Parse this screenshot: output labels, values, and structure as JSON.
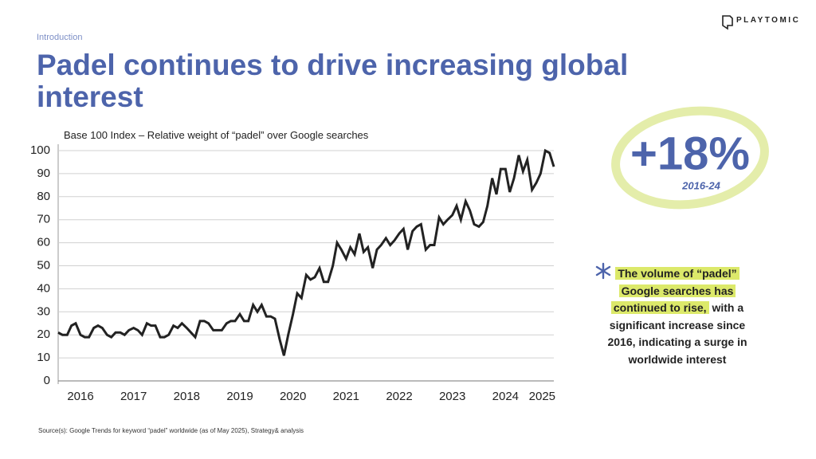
{
  "section": "Introduction",
  "title": "Padel continues to drive increasing global interest",
  "brand": "PLAYTOMIC",
  "kpi": {
    "value": "+18%",
    "period": "2016-24"
  },
  "callout": {
    "lines": [
      {
        "highlight": "The volume of “padel”"
      },
      {
        "highlight": "Google searches has"
      },
      {
        "highlight": "continued to rise,",
        "rest": "with a"
      },
      {
        "rest": "significant increase since"
      },
      {
        "rest": "2016, indicating a surge in"
      },
      {
        "rest": "worldwide interest"
      }
    ]
  },
  "source": "Source(s): Google Trends for keyword “padel” worldwide (as of May 2025), Strategy& analysis",
  "chart_data": {
    "type": "line",
    "title": "Base 100 Index – Relative weight of “padel” over Google searches",
    "color": "#222222",
    "grid": true,
    "x": [
      2016,
      2016.08,
      2016.17,
      2016.25,
      2016.33,
      2016.42,
      2016.5,
      2016.58,
      2016.67,
      2016.75,
      2016.83,
      2016.92,
      2017,
      2017.08,
      2017.17,
      2017.25,
      2017.33,
      2017.42,
      2017.5,
      2017.58,
      2017.67,
      2017.75,
      2017.83,
      2017.92,
      2018,
      2018.08,
      2018.17,
      2018.25,
      2018.33,
      2018.42,
      2018.5,
      2018.58,
      2018.67,
      2018.75,
      2018.83,
      2018.92,
      2019,
      2019.08,
      2019.17,
      2019.25,
      2019.33,
      2019.42,
      2019.5,
      2019.58,
      2019.67,
      2019.75,
      2019.83,
      2019.92,
      2020,
      2020.08,
      2020.17,
      2020.25,
      2020.33,
      2020.42,
      2020.5,
      2020.58,
      2020.67,
      2020.75,
      2020.83,
      2020.92,
      2021,
      2021.08,
      2021.17,
      2021.25,
      2021.33,
      2021.42,
      2021.5,
      2021.58,
      2021.67,
      2021.75,
      2021.83,
      2021.92,
      2022,
      2022.08,
      2022.17,
      2022.25,
      2022.33,
      2022.42,
      2022.5,
      2022.58,
      2022.67,
      2022.75,
      2022.83,
      2022.92,
      2023,
      2023.08,
      2023.17,
      2023.25,
      2023.33,
      2023.42,
      2023.5,
      2023.58,
      2023.67,
      2023.75,
      2023.83,
      2023.92,
      2024,
      2024.08,
      2024.17,
      2024.25,
      2024.33,
      2024.42,
      2024.5,
      2024.58,
      2024.67,
      2024.75,
      2024.83,
      2024.92,
      2025,
      2025.08,
      2025.17,
      2025.25,
      2025.33
    ],
    "values": [
      21,
      20,
      20,
      24,
      25,
      20,
      19,
      19,
      23,
      24,
      23,
      20,
      19,
      21,
      21,
      20,
      22,
      23,
      22,
      20,
      25,
      24,
      24,
      19,
      19,
      20,
      24,
      23,
      25,
      23,
      21,
      19,
      26,
      26,
      25,
      22,
      22,
      22,
      25,
      26,
      26,
      29,
      26,
      26,
      33,
      30,
      33,
      28,
      28,
      27,
      18,
      11,
      20,
      29,
      38,
      36,
      46,
      44,
      45,
      49,
      43,
      43,
      50,
      60,
      57,
      53,
      58,
      55,
      64,
      56,
      58,
      49,
      57,
      59,
      62,
      59,
      61,
      64,
      66,
      57,
      65,
      67,
      68,
      57,
      59,
      59,
      71,
      68,
      70,
      72,
      76,
      70,
      78,
      74,
      68,
      67,
      69,
      76,
      88,
      81,
      92,
      92,
      82,
      88,
      98,
      91,
      96,
      83,
      86,
      90,
      100,
      99,
      93
    ],
    "xlim": [
      2016,
      2025.33
    ],
    "xticks": [
      {
        "value": 2016.42,
        "label": "2016"
      },
      {
        "value": 2017.42,
        "label": "2017"
      },
      {
        "value": 2018.42,
        "label": "2018"
      },
      {
        "value": 2019.42,
        "label": "2019"
      },
      {
        "value": 2020.42,
        "label": "2020"
      },
      {
        "value": 2021.42,
        "label": "2021"
      },
      {
        "value": 2022.42,
        "label": "2022"
      },
      {
        "value": 2023.42,
        "label": "2023"
      },
      {
        "value": 2024.42,
        "label": "2024"
      },
      {
        "value": 2025.11,
        "label": "2025"
      }
    ],
    "ylim": [
      0,
      100
    ],
    "yticks": [
      0,
      10,
      20,
      30,
      40,
      50,
      60,
      70,
      80,
      90,
      100
    ]
  }
}
